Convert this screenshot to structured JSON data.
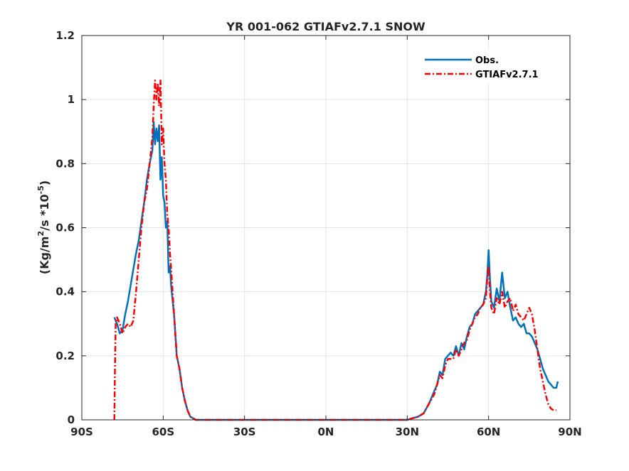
{
  "chart_data": {
    "type": "line",
    "title": "YR 001-062 GTIAFv2.7.1 SNOW",
    "ylabel": {
      "pre": "(Kg/m",
      "sup1": "2",
      "mid": "/s *10",
      "sup2": "-5",
      "post": ")"
    },
    "xlabel": "",
    "xlim": [
      -90,
      90
    ],
    "ylim": [
      0,
      1.2
    ],
    "x_ticks": [
      {
        "value": -90,
        "label": "90S"
      },
      {
        "value": -60,
        "label": "60S"
      },
      {
        "value": -30,
        "label": "30S"
      },
      {
        "value": 0,
        "label": "0N"
      },
      {
        "value": 30,
        "label": "30N"
      },
      {
        "value": 60,
        "label": "60N"
      },
      {
        "value": 90,
        "label": "90N"
      }
    ],
    "y_ticks": [
      {
        "value": 0,
        "label": "0"
      },
      {
        "value": 0.2,
        "label": "0.2"
      },
      {
        "value": 0.4,
        "label": "0.4"
      },
      {
        "value": 0.6,
        "label": "0.6"
      },
      {
        "value": 0.8,
        "label": "0.8"
      },
      {
        "value": 1.0,
        "label": "1"
      },
      {
        "value": 1.2,
        "label": "1.2"
      }
    ],
    "grid": true,
    "legend_position": "top-right",
    "series": [
      {
        "name": "Obs.",
        "color": "#0072bd",
        "style": "solid",
        "points": [
          [
            -78,
            0.32
          ],
          [
            -77,
            0.3
          ],
          [
            -76,
            0.27
          ],
          [
            -75,
            0.28
          ],
          [
            -74,
            0.33
          ],
          [
            -73,
            0.37
          ],
          [
            -72,
            0.42
          ],
          [
            -71,
            0.47
          ],
          [
            -70,
            0.52
          ],
          [
            -69,
            0.56
          ],
          [
            -68,
            0.62
          ],
          [
            -67,
            0.68
          ],
          [
            -66,
            0.75
          ],
          [
            -65,
            0.8
          ],
          [
            -64,
            0.84
          ],
          [
            -63.5,
            0.93
          ],
          [
            -63,
            0.86
          ],
          [
            -62.5,
            0.91
          ],
          [
            -62,
            0.87
          ],
          [
            -61.5,
            0.92
          ],
          [
            -61,
            0.75
          ],
          [
            -60.5,
            0.82
          ],
          [
            -60,
            0.7
          ],
          [
            -59.5,
            0.68
          ],
          [
            -59,
            0.6
          ],
          [
            -58.5,
            0.62
          ],
          [
            -58,
            0.46
          ],
          [
            -57.5,
            0.48
          ],
          [
            -57,
            0.41
          ],
          [
            -56,
            0.33
          ],
          [
            -55,
            0.2
          ],
          [
            -54,
            0.16
          ],
          [
            -53,
            0.1
          ],
          [
            -52,
            0.06
          ],
          [
            -51,
            0.03
          ],
          [
            -50,
            0.01
          ],
          [
            -48,
            0.0
          ],
          [
            -30,
            0.0
          ],
          [
            0,
            0.0
          ],
          [
            25,
            0.0
          ],
          [
            30,
            0.0
          ],
          [
            32,
            0.005
          ],
          [
            34,
            0.01
          ],
          [
            36,
            0.02
          ],
          [
            38,
            0.05
          ],
          [
            40,
            0.09
          ],
          [
            41,
            0.11
          ],
          [
            42,
            0.15
          ],
          [
            43,
            0.14
          ],
          [
            44,
            0.19
          ],
          [
            45,
            0.2
          ],
          [
            46,
            0.21
          ],
          [
            47,
            0.2
          ],
          [
            48,
            0.23
          ],
          [
            49,
            0.2
          ],
          [
            50,
            0.24
          ],
          [
            51,
            0.22
          ],
          [
            52,
            0.26
          ],
          [
            53,
            0.29
          ],
          [
            54,
            0.3
          ],
          [
            55,
            0.33
          ],
          [
            56,
            0.34
          ],
          [
            57,
            0.35
          ],
          [
            58,
            0.36
          ],
          [
            59,
            0.4
          ],
          [
            59.5,
            0.45
          ],
          [
            60,
            0.53
          ],
          [
            60.5,
            0.44
          ],
          [
            61,
            0.37
          ],
          [
            62,
            0.35
          ],
          [
            63,
            0.41
          ],
          [
            64,
            0.37
          ],
          [
            65,
            0.46
          ],
          [
            66,
            0.38
          ],
          [
            67,
            0.4
          ],
          [
            68,
            0.35
          ],
          [
            69,
            0.31
          ],
          [
            70,
            0.32
          ],
          [
            71,
            0.3
          ],
          [
            72,
            0.29
          ],
          [
            73,
            0.3
          ],
          [
            74,
            0.27
          ],
          [
            75,
            0.27
          ],
          [
            76,
            0.26
          ],
          [
            77,
            0.24
          ],
          [
            78,
            0.22
          ],
          [
            79,
            0.19
          ],
          [
            80,
            0.16
          ],
          [
            81,
            0.14
          ],
          [
            82,
            0.12
          ],
          [
            83,
            0.11
          ],
          [
            84,
            0.1
          ],
          [
            85,
            0.1
          ],
          [
            85.5,
            0.12
          ]
        ]
      },
      {
        "name": "GTIAFv2.7.1",
        "color": "#ff0000",
        "style": "dashdot",
        "points": [
          [
            -78,
            0.0
          ],
          [
            -77.8,
            0.15
          ],
          [
            -77.5,
            0.3
          ],
          [
            -77,
            0.32
          ],
          [
            -76,
            0.3
          ],
          [
            -75,
            0.27
          ],
          [
            -74,
            0.29
          ],
          [
            -73,
            0.3
          ],
          [
            -72,
            0.29
          ],
          [
            -71,
            0.31
          ],
          [
            -70,
            0.4
          ],
          [
            -69,
            0.5
          ],
          [
            -68,
            0.6
          ],
          [
            -67,
            0.68
          ],
          [
            -66,
            0.72
          ],
          [
            -65,
            0.8
          ],
          [
            -64,
            0.88
          ],
          [
            -63.5,
            0.98
          ],
          [
            -63,
            1.06
          ],
          [
            -62.5,
            1.0
          ],
          [
            -62,
            1.05
          ],
          [
            -61.5,
            0.98
          ],
          [
            -61,
            1.06
          ],
          [
            -60.5,
            0.86
          ],
          [
            -60,
            0.91
          ],
          [
            -59.5,
            0.8
          ],
          [
            -59,
            0.75
          ],
          [
            -58.5,
            0.64
          ],
          [
            -58,
            0.6
          ],
          [
            -57.5,
            0.52
          ],
          [
            -57,
            0.46
          ],
          [
            -56,
            0.33
          ],
          [
            -55,
            0.2
          ],
          [
            -54,
            0.16
          ],
          [
            -53,
            0.1
          ],
          [
            -52,
            0.06
          ],
          [
            -51,
            0.03
          ],
          [
            -50,
            0.01
          ],
          [
            -48,
            0.0
          ],
          [
            -30,
            0.0
          ],
          [
            0,
            0.0
          ],
          [
            25,
            0.0
          ],
          [
            30,
            0.0
          ],
          [
            32,
            0.005
          ],
          [
            34,
            0.01
          ],
          [
            36,
            0.02
          ],
          [
            38,
            0.05
          ],
          [
            40,
            0.08
          ],
          [
            41,
            0.11
          ],
          [
            42,
            0.14
          ],
          [
            43,
            0.13
          ],
          [
            44,
            0.17
          ],
          [
            45,
            0.19
          ],
          [
            46,
            0.19
          ],
          [
            47,
            0.19
          ],
          [
            48,
            0.22
          ],
          [
            49,
            0.2
          ],
          [
            50,
            0.22
          ],
          [
            51,
            0.24
          ],
          [
            52,
            0.25
          ],
          [
            53,
            0.28
          ],
          [
            54,
            0.3
          ],
          [
            55,
            0.32
          ],
          [
            56,
            0.33
          ],
          [
            57,
            0.35
          ],
          [
            58,
            0.36
          ],
          [
            59,
            0.38
          ],
          [
            59.5,
            0.44
          ],
          [
            60,
            0.48
          ],
          [
            60.5,
            0.4
          ],
          [
            61,
            0.35
          ],
          [
            62,
            0.33
          ],
          [
            63,
            0.38
          ],
          [
            64,
            0.36
          ],
          [
            65,
            0.4
          ],
          [
            66,
            0.35
          ],
          [
            67,
            0.37
          ],
          [
            68,
            0.38
          ],
          [
            69,
            0.34
          ],
          [
            70,
            0.36
          ],
          [
            71,
            0.33
          ],
          [
            72,
            0.32
          ],
          [
            73,
            0.31
          ],
          [
            74,
            0.33
          ],
          [
            75,
            0.35
          ],
          [
            76,
            0.33
          ],
          [
            77,
            0.28
          ],
          [
            78,
            0.22
          ],
          [
            79,
            0.16
          ],
          [
            80,
            0.12
          ],
          [
            81,
            0.08
          ],
          [
            82,
            0.05
          ],
          [
            83,
            0.035
          ],
          [
            84,
            0.03
          ],
          [
            85,
            0.03
          ]
        ]
      }
    ]
  }
}
